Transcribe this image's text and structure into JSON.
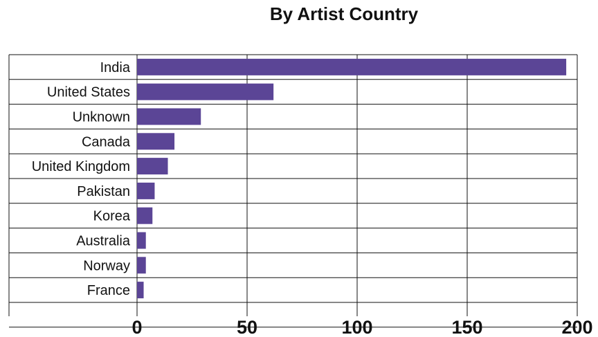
{
  "chart_data": {
    "type": "bar",
    "orientation": "horizontal",
    "title": "By Artist Country",
    "xlabel": "",
    "ylabel": "",
    "categories": [
      "India",
      "United States",
      "Unknown",
      "Canada",
      "United Kingdom",
      "Pakistan",
      "Korea",
      "Australia",
      "Norway",
      "France"
    ],
    "values": [
      195,
      62,
      29,
      17,
      14,
      8,
      7,
      4,
      4,
      3
    ],
    "xlim": [
      0,
      200
    ],
    "xticks": [
      0,
      50,
      100,
      150,
      200
    ],
    "xtick_labels": [
      "0",
      "50",
      "100",
      "150",
      "200"
    ],
    "grid": true,
    "bar_color": "#5b4596"
  }
}
